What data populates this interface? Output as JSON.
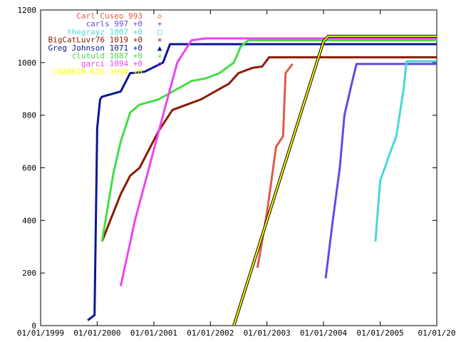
{
  "chart_data": {
    "type": "line",
    "title": "",
    "xlabel": "",
    "ylabel": "",
    "x_type": "date",
    "xlim": [
      "1999-01-01",
      "2006-01-01"
    ],
    "ylim": [
      0,
      1200
    ],
    "grid": false,
    "legend_position": "top-left",
    "x_tick_labels": [
      "01/01/1999",
      "01/01/2000",
      "01/01/2001",
      "01/01/2002",
      "01/01/2003",
      "01/01/2004",
      "01/01/2005",
      "01/01/20"
    ],
    "y_tick_labels": [
      "0",
      "200",
      "400",
      "600",
      "800",
      "1000",
      "1200"
    ],
    "x_ticks": [
      "1999-01-01",
      "2000-01-01",
      "2001-01-01",
      "2002-01-01",
      "2003-01-01",
      "2004-01-01",
      "2005-01-01",
      "2006-01-01"
    ],
    "y_ticks": [
      0,
      200,
      400,
      600,
      800,
      1000,
      1200
    ],
    "series": [
      {
        "name": "Carl Cuseo 993",
        "marker": "◇",
        "color": "#e05a4a",
        "x": [
          "2002-11-01",
          "2003-01-01",
          "2003-03-01",
          "2003-04-15",
          "2003-05-01",
          "2003-06-15"
        ],
        "y": [
          220,
          430,
          680,
          720,
          960,
          995
        ]
      },
      {
        "name": "carls 997 +0",
        "marker": "+",
        "color": "#6a46e6",
        "x": [
          "2004-01-15",
          "2004-03-01",
          "2004-04-15",
          "2004-05-15",
          "2004-07-01",
          "2004-08-01",
          "2006-01-01"
        ],
        "y": [
          180,
          400,
          600,
          800,
          920,
          995,
          995
        ]
      },
      {
        "name": "thegrayz 1007 +0",
        "marker": "□",
        "color": "#48d8d8",
        "x": [
          "2004-12-01",
          "2005-01-01",
          "2005-03-01",
          "2005-04-15",
          "2005-06-01",
          "2005-06-20",
          "2006-01-01"
        ],
        "y": [
          320,
          550,
          650,
          720,
          900,
          1005,
          1005
        ]
      },
      {
        "name": "BigCatLuvr76 1019 +0",
        "marker": "×",
        "color": "#8b1a00",
        "x": [
          "2000-02-01",
          "2000-06-01",
          "2000-08-01",
          "2000-10-01",
          "2001-02-01",
          "2001-05-01",
          "2001-11-01",
          "2002-05-01",
          "2002-07-01",
          "2002-10-01",
          "2002-12-01",
          "2003-01-15",
          "2006-01-01"
        ],
        "y": [
          320,
          500,
          570,
          600,
          740,
          820,
          860,
          920,
          960,
          980,
          985,
          1020,
          1020
        ]
      },
      {
        "name": "Greg Johnson 1071 +0",
        "marker": "▲",
        "color": "#0a1696",
        "x": [
          "1999-11-01",
          "1999-12-15",
          "2000-01-01",
          "2000-01-20",
          "2000-02-01",
          "2000-06-01",
          "2000-08-01",
          "2000-11-01",
          "2001-03-01",
          "2001-04-15",
          "2002-01-01",
          "2006-01-01"
        ],
        "y": [
          20,
          40,
          750,
          860,
          870,
          890,
          960,
          965,
          1000,
          1070,
          1070,
          1070
        ]
      },
      {
        "name": "clutuld 1087 +0",
        "marker": "✳",
        "color": "#44dd44",
        "x": [
          "2000-02-01",
          "2000-04-15",
          "2000-06-01",
          "2000-08-01",
          "2000-10-01",
          "2001-02-01",
          "2001-06-01",
          "2001-09-01",
          "2001-12-01",
          "2002-03-01",
          "2002-06-01",
          "2002-07-15",
          "2002-09-01",
          "2006-01-01"
        ],
        "y": [
          320,
          580,
          700,
          810,
          840,
          860,
          900,
          930,
          940,
          960,
          1000,
          1060,
          1085,
          1085
        ]
      },
      {
        "name": "garci 1094 +0",
        "marker": "◇",
        "color": "#ee44ee",
        "x": [
          "2000-06-01",
          "2000-09-01",
          "2000-12-01",
          "2001-03-01",
          "2001-06-01",
          "2001-09-01",
          "2001-12-01",
          "2006-01-01"
        ],
        "y": [
          150,
          400,
          600,
          800,
          1000,
          1085,
          1092,
          1092
        ]
      },
      {
        "name": "CRANKIN RIG 1099 +0",
        "marker": "",
        "color": "#ffff00",
        "x": [
          "2002-06-01",
          "2003-01-01",
          "2004-01-01",
          "2004-02-01",
          "2006-01-01"
        ],
        "y": [
          0,
          400,
          1080,
          1100,
          1100
        ]
      }
    ]
  }
}
